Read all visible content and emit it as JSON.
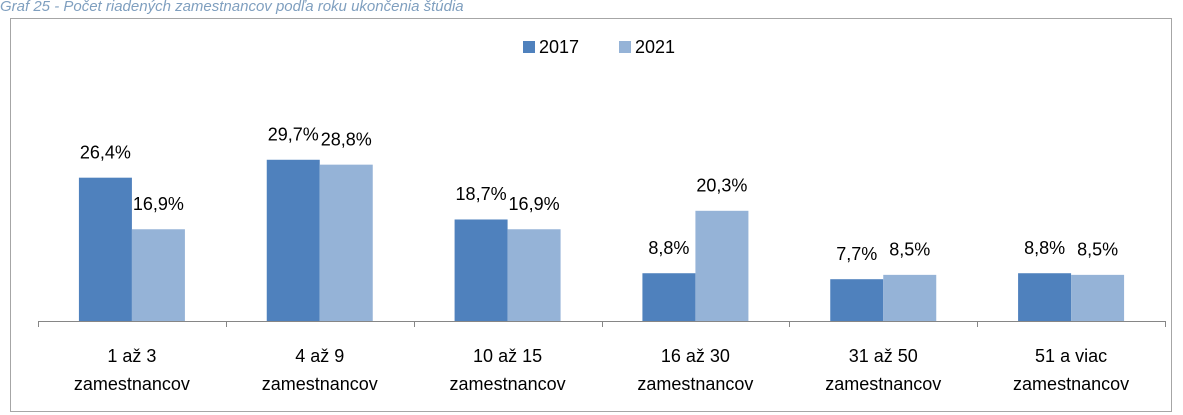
{
  "chart_data": {
    "type": "bar",
    "title": "Graf 25 - Počet riadených zamestnancov podľa roku ukončenia štúdia",
    "categories": [
      "1 až 3 zamestnancov",
      "4 až 9 zamestnancov",
      "10 až 15 zamestnancov",
      "16 až 30 zamestnancov",
      "31 až 50 zamestnancov",
      "51 a viac zamestnancov"
    ],
    "series": [
      {
        "name": "2017",
        "color": "#4f81bd",
        "values": [
          26.4,
          29.7,
          18.7,
          8.8,
          7.7,
          8.8
        ],
        "value_labels": [
          "26,4%",
          "29,7%",
          "18,7%",
          "8,8%",
          "7,7%",
          "8,8%"
        ]
      },
      {
        "name": "2021",
        "color": "#95b3d7",
        "values": [
          16.9,
          28.8,
          16.9,
          20.3,
          8.5,
          8.5
        ],
        "value_labels": [
          "16,9%",
          "28,8%",
          "16,9%",
          "20,3%",
          "8,5%",
          "8,5%"
        ]
      }
    ],
    "ylim": [
      0,
      35
    ],
    "legend": "top"
  }
}
